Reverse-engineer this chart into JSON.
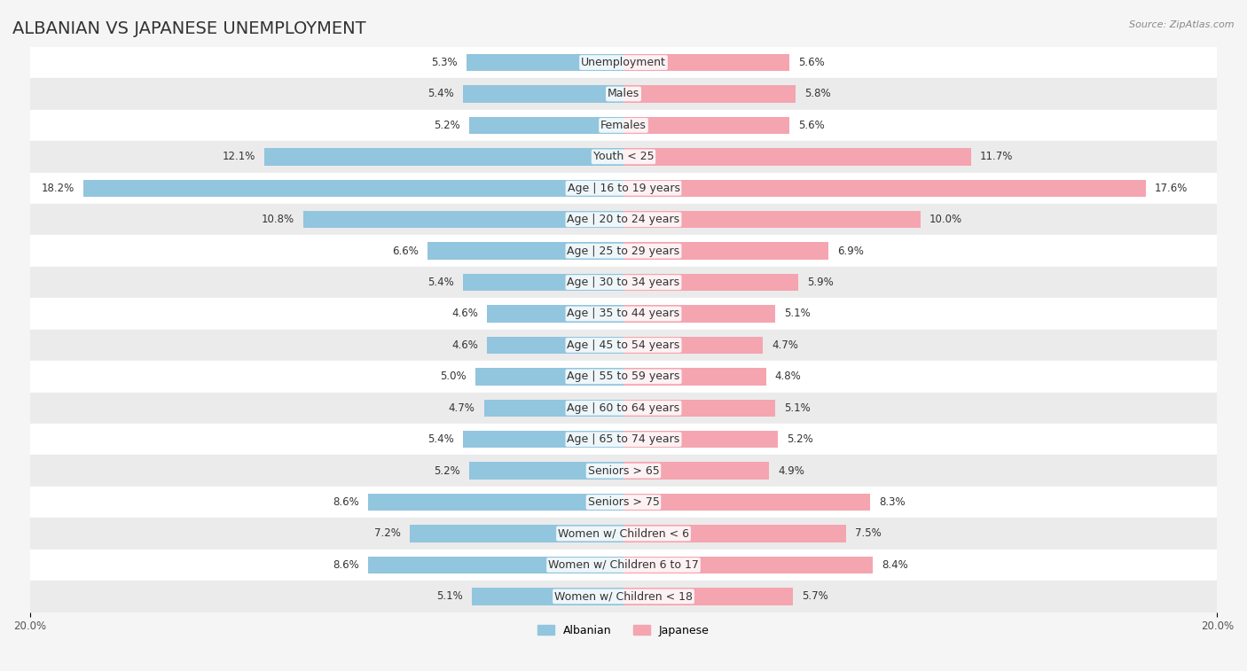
{
  "title": "ALBANIAN VS JAPANESE UNEMPLOYMENT",
  "source": "Source: ZipAtlas.com",
  "categories": [
    "Unemployment",
    "Males",
    "Females",
    "Youth < 25",
    "Age | 16 to 19 years",
    "Age | 20 to 24 years",
    "Age | 25 to 29 years",
    "Age | 30 to 34 years",
    "Age | 35 to 44 years",
    "Age | 45 to 54 years",
    "Age | 55 to 59 years",
    "Age | 60 to 64 years",
    "Age | 65 to 74 years",
    "Seniors > 65",
    "Seniors > 75",
    "Women w/ Children < 6",
    "Women w/ Children 6 to 17",
    "Women w/ Children < 18"
  ],
  "albanian": [
    5.3,
    5.4,
    5.2,
    12.1,
    18.2,
    10.8,
    6.6,
    5.4,
    4.6,
    4.6,
    5.0,
    4.7,
    5.4,
    5.2,
    8.6,
    7.2,
    8.6,
    5.1
  ],
  "japanese": [
    5.6,
    5.8,
    5.6,
    11.7,
    17.6,
    10.0,
    6.9,
    5.9,
    5.1,
    4.7,
    4.8,
    5.1,
    5.2,
    4.9,
    8.3,
    7.5,
    8.4,
    5.7
  ],
  "albanian_color": "#92c5de",
  "japanese_color": "#f4a5b0",
  "albanian_label": "Albanian",
  "japanese_label": "Japanese",
  "xlim": 20.0,
  "background_color": "#f5f5f5",
  "row_bg_light": "#ffffff",
  "row_bg_dark": "#ebebeb",
  "title_fontsize": 14,
  "label_fontsize": 9,
  "value_fontsize": 8.5
}
